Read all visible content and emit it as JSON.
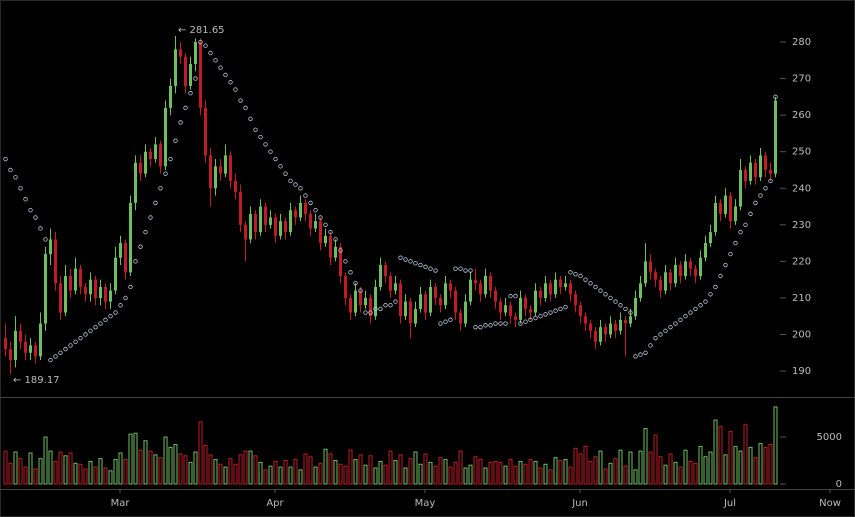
{
  "chart_data": {
    "type": "candlestick",
    "up_color": "#6fbf5f",
    "down_color": "#c01c28",
    "sar_color": "#b4c4d8",
    "xlim": [
      -1,
      170
    ],
    "xticks": [
      {
        "value": 23,
        "label": "Mar"
      },
      {
        "value": 54,
        "label": "Apr"
      },
      {
        "value": 84,
        "label": "May"
      },
      {
        "value": 115,
        "label": "Jun"
      },
      {
        "value": 145,
        "label": "Jul"
      },
      {
        "value": 165,
        "label": "Now"
      }
    ],
    "ylim": [
      182.9,
      291.5
    ],
    "yticks": [
      190,
      200,
      210,
      220,
      230,
      240,
      250,
      260,
      270,
      280
    ],
    "y2lim": [
      -640,
      9260
    ],
    "y2ticks": [
      0,
      5000
    ],
    "annotations": [
      {
        "text": "← 281.65",
        "value": 281.65,
        "at": "high"
      },
      {
        "text": "← 189.17",
        "value": 189.17,
        "at": "low"
      }
    ],
    "ohlc": [
      [
        199,
        203,
        194,
        196
      ],
      [
        196,
        198,
        189.17,
        193
      ],
      [
        193,
        205,
        191,
        201
      ],
      [
        201,
        203,
        196,
        198
      ],
      [
        198,
        200,
        193,
        195
      ],
      [
        195,
        199,
        193,
        197
      ],
      [
        197,
        198,
        192,
        194
      ],
      [
        194,
        206,
        193,
        203
      ],
      [
        203,
        224,
        201,
        222
      ],
      [
        222,
        229,
        219,
        226
      ],
      [
        226,
        228,
        212,
        214
      ],
      [
        214,
        216,
        204,
        206
      ],
      [
        206,
        219,
        205,
        216
      ],
      [
        216,
        218,
        210,
        212
      ],
      [
        212,
        221,
        211,
        218
      ],
      [
        218,
        219,
        211,
        213
      ],
      [
        213,
        214,
        209,
        211
      ],
      [
        211,
        217,
        209,
        215
      ],
      [
        215,
        216,
        208,
        210
      ],
      [
        210,
        215,
        208,
        213
      ],
      [
        213,
        214,
        207,
        209
      ],
      [
        209,
        214,
        207,
        212
      ],
      [
        212,
        224,
        211,
        221
      ],
      [
        221,
        227,
        219,
        225
      ],
      [
        225,
        226,
        215,
        217
      ],
      [
        217,
        238,
        216,
        236
      ],
      [
        236,
        249,
        234,
        247
      ],
      [
        247,
        249,
        242,
        244
      ],
      [
        244,
        252,
        243,
        250
      ],
      [
        250,
        251,
        246,
        248
      ],
      [
        248,
        254,
        247,
        252
      ],
      [
        252,
        253,
        244,
        246
      ],
      [
        246,
        264,
        245,
        262
      ],
      [
        262,
        270,
        260,
        268
      ],
      [
        268,
        281.65,
        266,
        278
      ],
      [
        278,
        280,
        274,
        276
      ],
      [
        276,
        277,
        266,
        268
      ],
      [
        268,
        276,
        267,
        274
      ],
      [
        274,
        281,
        272,
        280
      ],
      [
        280,
        281,
        260,
        262
      ],
      [
        262,
        264,
        247,
        249
      ],
      [
        249,
        251,
        235,
        240
      ],
      [
        240,
        248,
        238,
        246
      ],
      [
        246,
        248,
        242,
        244
      ],
      [
        244,
        252,
        243,
        249
      ],
      [
        249,
        250,
        240,
        242
      ],
      [
        242,
        244,
        237,
        239
      ],
      [
        239,
        241,
        228,
        230
      ],
      [
        230,
        231,
        220,
        226
      ],
      [
        226,
        235,
        225,
        233
      ],
      [
        233,
        234,
        226,
        228
      ],
      [
        228,
        237,
        227,
        235
      ],
      [
        235,
        236,
        228,
        230
      ],
      [
        230,
        234,
        229,
        232
      ],
      [
        232,
        233,
        225,
        227
      ],
      [
        227,
        233,
        226,
        231
      ],
      [
        231,
        232,
        226,
        228
      ],
      [
        228,
        236,
        227,
        234
      ],
      [
        234,
        235,
        230,
        232
      ],
      [
        232,
        238,
        231,
        236
      ],
      [
        236,
        237,
        231,
        233
      ],
      [
        233,
        234,
        227,
        229
      ],
      [
        229,
        233,
        228,
        231
      ],
      [
        231,
        232,
        223,
        225
      ],
      [
        225,
        229,
        224,
        227
      ],
      [
        227,
        228,
        219,
        221
      ],
      [
        221,
        226,
        220,
        224
      ],
      [
        224,
        225,
        214,
        216
      ],
      [
        216,
        217,
        208,
        210
      ],
      [
        210,
        211,
        204,
        206
      ],
      [
        206,
        214,
        205,
        212
      ],
      [
        212,
        213,
        206,
        208
      ],
      [
        208,
        212,
        207,
        210
      ],
      [
        210,
        211,
        203,
        205
      ],
      [
        205,
        215,
        204,
        213
      ],
      [
        213,
        221,
        212,
        219
      ],
      [
        219,
        220,
        214,
        216
      ],
      [
        216,
        217,
        210,
        212
      ],
      [
        212,
        216,
        211,
        214
      ],
      [
        214,
        215,
        203,
        205
      ],
      [
        205,
        211,
        204,
        209
      ],
      [
        209,
        210,
        199,
        203
      ],
      [
        203,
        209,
        202,
        207
      ],
      [
        207,
        213,
        206,
        211
      ],
      [
        211,
        212,
        204,
        206
      ],
      [
        206,
        215,
        205,
        213
      ],
      [
        213,
        214,
        208,
        210
      ],
      [
        210,
        211,
        206,
        208
      ],
      [
        208,
        216,
        207,
        214
      ],
      [
        214,
        215,
        210,
        212
      ],
      [
        212,
        213,
        204,
        206
      ],
      [
        206,
        207,
        201,
        203
      ],
      [
        203,
        211,
        202,
        209
      ],
      [
        209,
        217,
        208,
        215
      ],
      [
        215,
        218,
        212,
        214
      ],
      [
        214,
        215,
        209,
        211
      ],
      [
        211,
        218,
        210,
        216
      ],
      [
        216,
        217,
        210,
        212
      ],
      [
        212,
        213,
        207,
        209
      ],
      [
        209,
        210,
        204,
        206
      ],
      [
        206,
        210,
        205,
        208
      ],
      [
        208,
        209,
        203,
        205
      ],
      [
        205,
        206,
        202,
        204
      ],
      [
        204,
        212,
        203,
        210
      ],
      [
        210,
        211,
        205,
        207
      ],
      [
        207,
        208,
        204,
        206
      ],
      [
        206,
        214,
        205,
        212
      ],
      [
        212,
        213,
        208,
        210
      ],
      [
        210,
        216,
        209,
        214
      ],
      [
        214,
        215,
        209,
        211
      ],
      [
        211,
        217,
        210,
        215
      ],
      [
        215,
        216,
        211,
        213
      ],
      [
        213,
        216,
        212,
        214
      ],
      [
        214,
        215,
        209,
        211
      ],
      [
        211,
        212,
        206,
        208
      ],
      [
        208,
        209,
        203,
        205
      ],
      [
        205,
        206,
        201,
        203
      ],
      [
        203,
        204,
        199,
        201
      ],
      [
        201,
        202,
        196,
        198
      ],
      [
        198,
        204,
        197,
        202
      ],
      [
        202,
        203,
        198,
        200
      ],
      [
        200,
        205,
        199,
        203
      ],
      [
        203,
        204,
        199,
        201
      ],
      [
        201,
        206,
        200,
        204
      ],
      [
        204,
        205,
        194,
        203
      ],
      [
        203,
        207,
        202,
        205
      ],
      [
        205,
        212,
        204,
        210
      ],
      [
        210,
        216,
        209,
        214
      ],
      [
        214,
        225,
        213,
        220
      ],
      [
        220,
        222,
        215,
        217
      ],
      [
        217,
        218,
        213,
        215
      ],
      [
        215,
        216,
        210,
        212
      ],
      [
        212,
        219,
        211,
        217
      ],
      [
        217,
        218,
        212,
        214
      ],
      [
        214,
        221,
        213,
        219
      ],
      [
        219,
        220,
        214,
        216
      ],
      [
        216,
        222,
        215,
        220
      ],
      [
        220,
        221,
        216,
        218
      ],
      [
        218,
        219,
        214,
        216
      ],
      [
        216,
        223,
        215,
        221
      ],
      [
        221,
        227,
        220,
        225
      ],
      [
        225,
        230,
        224,
        228
      ],
      [
        228,
        238,
        227,
        236
      ],
      [
        236,
        237,
        231,
        233
      ],
      [
        233,
        240,
        232,
        238
      ],
      [
        238,
        239,
        229,
        231
      ],
      [
        231,
        237,
        230,
        235
      ],
      [
        235,
        248,
        234,
        245
      ],
      [
        245,
        246,
        240,
        242
      ],
      [
        242,
        249,
        241,
        247
      ],
      [
        247,
        248,
        241,
        243
      ],
      [
        243,
        251,
        242,
        249
      ],
      [
        249,
        250,
        243,
        245
      ],
      [
        245,
        247,
        242,
        244
      ],
      [
        244,
        265,
        243,
        264
      ]
    ],
    "volume": [
      3500,
      2200,
      3400,
      2700,
      1800,
      3300,
      1600,
      2700,
      5000,
      3500,
      2400,
      3400,
      3000,
      3300,
      2200,
      2100,
      1600,
      2400,
      1800,
      2700,
      1700,
      1400,
      2600,
      3300,
      2600,
      5300,
      5400,
      3600,
      4600,
      3500,
      3100,
      2800,
      5000,
      3900,
      4200,
      3200,
      3000,
      2300,
      3400,
      6600,
      4100,
      3100,
      2600,
      2100,
      1800,
      2700,
      2100,
      3100,
      3500,
      3500,
      3000,
      2300,
      1500,
      1900,
      2400,
      1800,
      2500,
      1800,
      2600,
      1500,
      3200,
      2900,
      1800,
      2200,
      3700,
      3200,
      2500,
      2100,
      1900,
      3600,
      2600,
      3100,
      2000,
      3000,
      1700,
      2400,
      2000,
      3500,
      2500,
      3100,
      1700,
      2700,
      3400,
      2100,
      3200,
      2300,
      1900,
      2800,
      2600,
      1800,
      2300,
      3500,
      1700,
      2000,
      2900,
      2600,
      1700,
      2300,
      2400,
      2300,
      1900,
      2600,
      1900,
      2400,
      2100,
      2600,
      2400,
      1700,
      2100,
      1500,
      2800,
      2500,
      2600,
      1800,
      3800,
      3200,
      4000,
      2400,
      2900,
      3500,
      1600,
      2200,
      2700,
      3600,
      1900,
      3400,
      1500,
      3500,
      5900,
      3400,
      5200,
      2900,
      2000,
      3200,
      2300,
      1800,
      3600,
      2400,
      2200,
      4000,
      2900,
      3400,
      6800,
      6100,
      3100,
      5600,
      4000,
      3500,
      6300,
      3900,
      2800,
      4300,
      3900,
      4200,
      8200
    ],
    "sar": [
      248,
      245,
      243,
      240,
      237,
      234,
      232,
      229,
      226,
      193,
      194,
      195,
      196,
      197,
      198,
      199,
      200,
      201,
      202,
      203,
      204,
      205,
      206,
      208,
      210,
      213,
      220,
      224,
      228,
      232,
      236,
      240,
      244,
      248,
      253,
      258,
      262,
      266,
      270,
      280,
      279,
      277,
      275,
      273,
      271,
      269,
      267,
      264,
      262,
      259,
      256,
      254,
      252,
      250,
      248,
      246,
      244,
      242,
      241,
      240,
      238,
      236,
      234,
      232,
      230,
      228,
      226,
      223,
      220,
      217,
      214,
      212,
      206,
      206,
      207,
      207,
      208,
      208,
      209,
      221,
      220.5,
      220,
      219.5,
      219,
      218.5,
      218,
      217.5,
      203,
      203.5,
      204,
      218,
      218,
      217.5,
      217.5,
      202,
      202,
      202.5,
      202.5,
      203,
      203,
      203,
      210.5,
      210.5,
      203,
      203.5,
      204,
      204.5,
      205,
      205.5,
      206,
      206.5,
      207,
      207.5,
      217,
      216.5,
      216,
      215,
      214,
      213,
      212,
      211,
      210,
      209,
      208,
      207,
      206,
      194,
      194.5,
      195,
      197,
      199,
      200,
      201,
      202,
      203,
      204,
      205,
      206,
      207,
      208,
      209,
      211,
      213,
      216,
      219,
      222,
      225,
      228,
      230,
      233,
      236,
      238,
      240,
      242,
      265
    ]
  }
}
